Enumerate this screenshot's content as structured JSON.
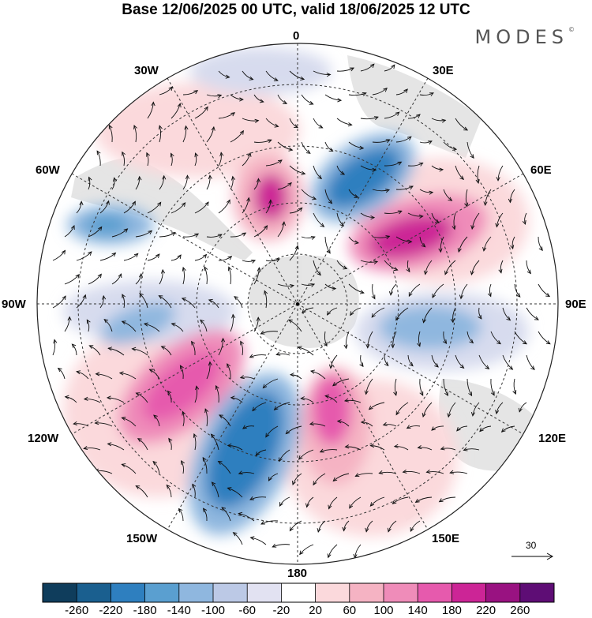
{
  "title": "Base 12/06/2025 00 UTC, valid 18/06/2025 12 UTC",
  "logo": "MODES",
  "logo_mark": "©",
  "meridians": {
    "top": "0",
    "bottom": "180",
    "left": "90W",
    "right": "90E",
    "w30": "30W",
    "e30": "30E",
    "w60": "60W",
    "e60": "60E",
    "w120": "120W",
    "e120": "120E",
    "w150": "150W",
    "e150": "150E"
  },
  "reference_vector": "30",
  "colorbar": {
    "labels": [
      "-260",
      "-220",
      "-180",
      "-140",
      "-100",
      "-60",
      "-20",
      "20",
      "60",
      "100",
      "140",
      "180",
      "220",
      "260"
    ],
    "colors": [
      "#0f3d5c",
      "#1a5f8f",
      "#2e7fbf",
      "#5a9fd0",
      "#8fb7df",
      "#bcc9e6",
      "#e2e2f2",
      "#ffffff",
      "#fbd9dc",
      "#f5b3c3",
      "#ef8cb9",
      "#e65aad",
      "#cc2596",
      "#991281",
      "#5e0d75"
    ]
  },
  "anomaly_features": [
    {
      "sign": "positive",
      "level": 180,
      "area": "near 20W"
    },
    {
      "sign": "negative",
      "level": -180,
      "area": "near 20E"
    },
    {
      "sign": "positive",
      "level": 180,
      "area": "near 60E"
    },
    {
      "sign": "negative",
      "level": -140,
      "area": "near 70W"
    },
    {
      "sign": "negative",
      "level": -100,
      "area": "near 100E"
    },
    {
      "sign": "positive",
      "level": 180,
      "area": "near 115W"
    },
    {
      "sign": "negative",
      "level": -180,
      "area": "near 160W"
    },
    {
      "sign": "positive",
      "level": 140,
      "area": "near 160E"
    }
  ]
}
